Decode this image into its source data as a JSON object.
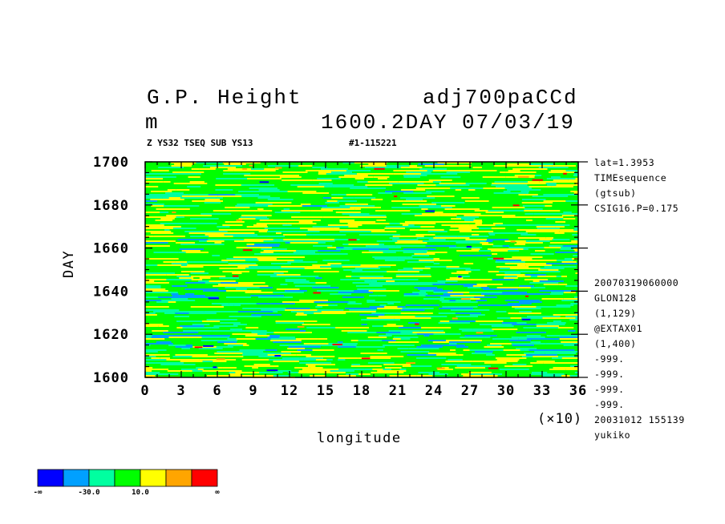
{
  "header": {
    "title_left": "G.P. Height",
    "title_right": "adj700paCCd",
    "unit": "m",
    "time_label": "1600.2DAY 07/03/19",
    "sub_left": "Z YS32 TSEQ SUB YS13",
    "sub_right": "#1-115221"
  },
  "side_info": [
    "lat=1.3953",
    "TIMEsequence",
    "(gtsub)",
    "CSIG16.P=0.175",
    "20070319060000",
    "GLON128",
    "(1,129)",
    "@EXTAX01",
    "(1,400)",
    "-999.",
    "-999.",
    "-999.",
    "-999.",
    "20031012 155139",
    "yukiko"
  ],
  "chart_data": {
    "type": "heatmap",
    "xlabel": "longitude",
    "ylabel": "DAY",
    "x_multiplier": "(×10)",
    "xlim": [
      0,
      36
    ],
    "ylim": [
      1600,
      1700
    ],
    "x_ticks": [
      "0",
      "3",
      "6",
      "9",
      "12",
      "15",
      "18",
      "21",
      "24",
      "27",
      "30",
      "33",
      "36"
    ],
    "y_ticks": [
      "1600",
      "1620",
      "1640",
      "1660",
      "1680",
      "1700"
    ],
    "colorbar": {
      "colors": [
        "#0000ff",
        "#00a0ff",
        "#00ffa0",
        "#00ff00",
        "#ffff00",
        "#ffa500",
        "#ff0000"
      ],
      "labels": [
        "-∞",
        "-30.0",
        "10.0",
        "∞"
      ]
    }
  }
}
